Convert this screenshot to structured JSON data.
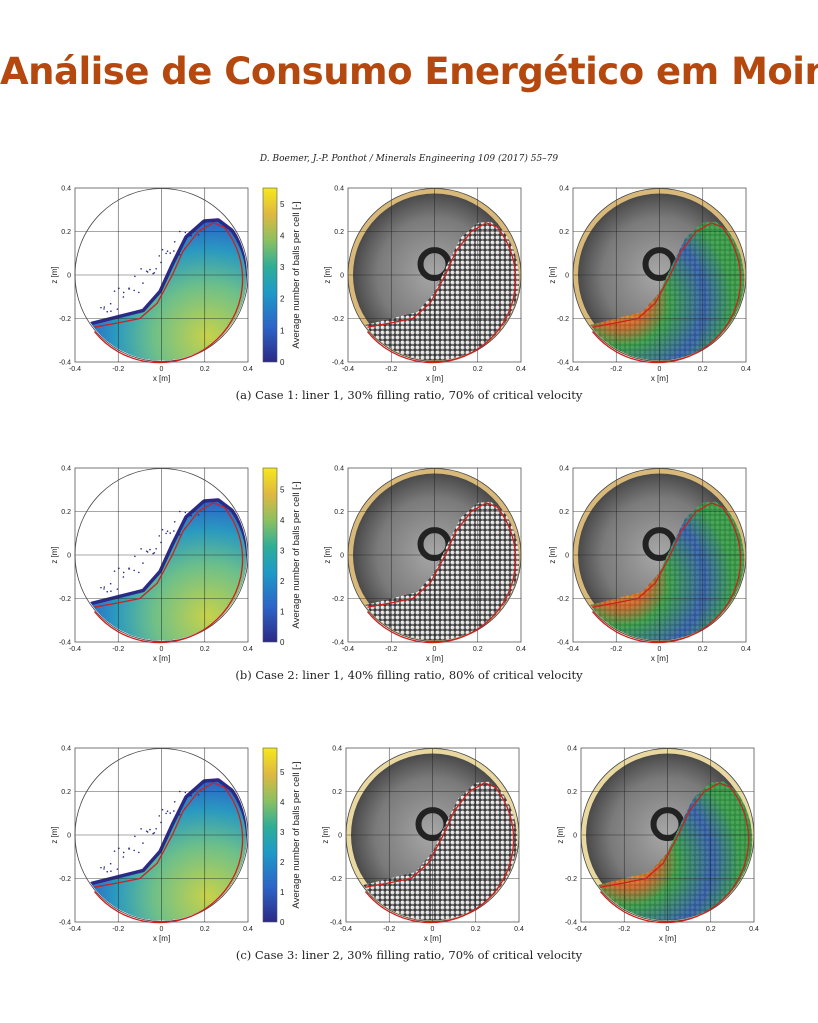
{
  "title": "Análise de Consumo Energético em Moinhos",
  "header": "D. Boemer, J.-P. Ponthot / Minerals Engineering 109 (2017) 55–79",
  "axes": {
    "xlabel": "x [m]",
    "ylabel": "z [m]",
    "x_ticks": [
      "-0.4",
      "-0.2",
      "0",
      "0.2",
      "0.4"
    ],
    "z_ticks": [
      "0.4",
      "0.2",
      "0",
      "-0.2",
      "-0.4"
    ]
  },
  "colorbar": {
    "label": "Average number of balls per cell [-]",
    "ticks": [
      "0",
      "1",
      "2",
      "3",
      "4",
      "5"
    ]
  },
  "colors": {
    "title": "#b5480f",
    "profile_line": "#d0201c"
  },
  "rows": [
    {
      "caption": "(a) Case 1: liner 1, 30% filling ratio, 70% of critical velocity",
      "cmax": 5.5,
      "liner": "smooth"
    },
    {
      "caption": "(b) Case 2: liner 1, 40% filling ratio, 80% of critical velocity",
      "cmax": 5.7,
      "liner": "smooth"
    },
    {
      "caption": "(c) Case 3: liner 2, 30% filling ratio, 70% of critical velocity",
      "cmax": 5.8,
      "liner": "wavy"
    }
  ]
}
